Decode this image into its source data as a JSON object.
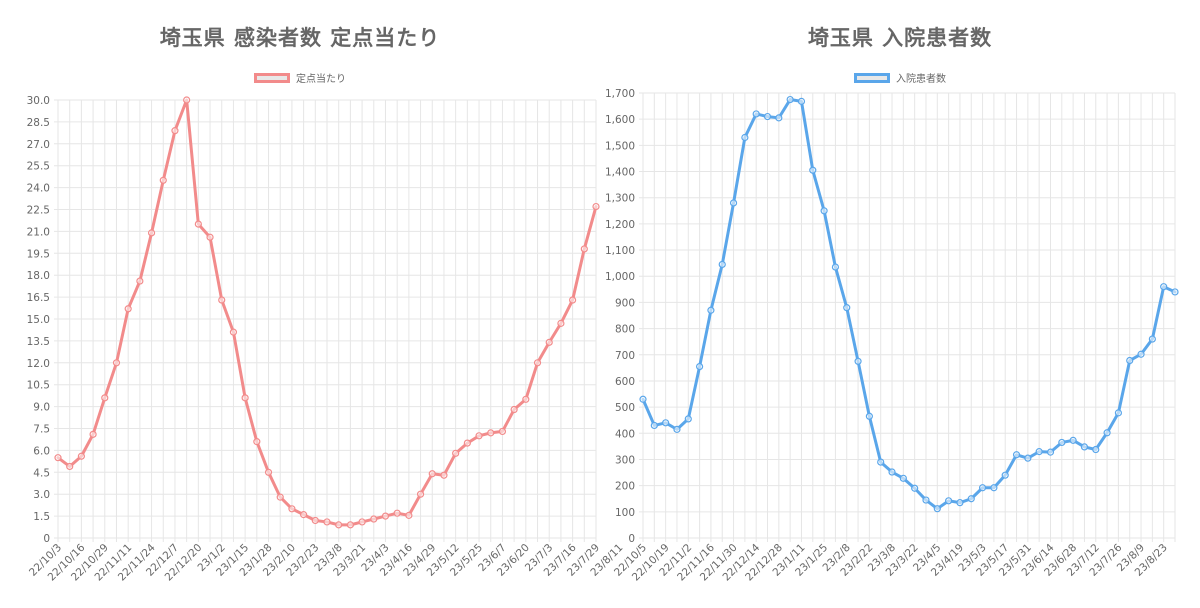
{
  "chart_data": [
    {
      "type": "line",
      "title": "埼玉県 感染者数 定点当たり",
      "series": [
        {
          "name": "定点当たり",
          "color": "#f28b8b",
          "values": [
            5.5,
            4.9,
            5.6,
            7.1,
            9.6,
            12.0,
            15.7,
            17.6,
            20.9,
            24.5,
            27.9,
            30.0,
            21.5,
            20.6,
            16.3,
            14.1,
            9.6,
            6.6,
            4.5,
            2.8,
            2.0,
            1.6,
            1.2,
            1.1,
            0.9,
            0.9,
            1.1,
            1.3,
            1.5,
            1.7,
            1.55,
            3.0,
            4.4,
            4.3,
            5.8,
            6.5,
            7.0,
            7.2,
            7.3,
            8.8,
            9.5,
            12.0,
            13.4,
            14.7,
            16.3,
            19.8,
            22.7
          ]
        }
      ],
      "x_tick_labels": [
        "22/10/3",
        "22/10/16",
        "22/10/29",
        "22/11/11",
        "22/11/24",
        "22/12/7",
        "22/12/20",
        "23/1/2",
        "23/1/15",
        "23/1/28",
        "23/2/10",
        "23/2/23",
        "23/3/8",
        "23/3/21",
        "23/4/3",
        "23/4/16",
        "23/4/29",
        "23/5/12",
        "23/5/25",
        "23/6/7",
        "23/6/20",
        "23/7/3",
        "23/7/16",
        "23/7/29",
        "23/8/11"
      ],
      "y_ticks": [
        "0",
        "1.5",
        "3.0",
        "4.5",
        "6.0",
        "7.5",
        "9.0",
        "10.5",
        "12.0",
        "13.5",
        "15.0",
        "16.5",
        "18.0",
        "19.5",
        "21.0",
        "22.5",
        "24.0",
        "25.5",
        "27.0",
        "28.5",
        "30.0"
      ],
      "ylim": [
        0,
        30
      ],
      "grid": true,
      "legend": "top-center"
    },
    {
      "type": "line",
      "title": "埼玉県 入院患者数",
      "series": [
        {
          "name": "入院患者数",
          "color": "#5aa6ea",
          "values": [
            530,
            430,
            440,
            415,
            455,
            655,
            870,
            1045,
            1280,
            1530,
            1620,
            1610,
            1605,
            1675,
            1668,
            1405,
            1250,
            1035,
            880,
            675,
            465,
            290,
            252,
            228,
            190,
            145,
            112,
            142,
            135,
            150,
            192,
            192,
            240,
            318,
            305,
            330,
            328,
            365,
            373,
            348,
            338,
            402,
            478,
            678,
            702,
            760,
            960,
            940
          ]
        }
      ],
      "x_tick_labels": [
        "22/10/5",
        "22/10/19",
        "22/11/2",
        "22/11/16",
        "22/11/30",
        "22/12/14",
        "22/12/28",
        "23/1/11",
        "23/1/25",
        "23/2/8",
        "23/2/22",
        "23/3/8",
        "23/3/22",
        "23/4/5",
        "23/4/19",
        "23/5/3",
        "23/5/17",
        "23/5/31",
        "23/6/14",
        "23/6/28",
        "23/7/12",
        "23/7/26",
        "23/8/9",
        "23/8/23"
      ],
      "y_ticks": [
        "0",
        "100",
        "200",
        "300",
        "400",
        "500",
        "600",
        "700",
        "800",
        "900",
        "1,000",
        "1,100",
        "1,200",
        "1,300",
        "1,400",
        "1,500",
        "1,600",
        "1,700"
      ],
      "ylim": [
        0,
        1700
      ],
      "grid": true,
      "legend": "top-center"
    }
  ]
}
